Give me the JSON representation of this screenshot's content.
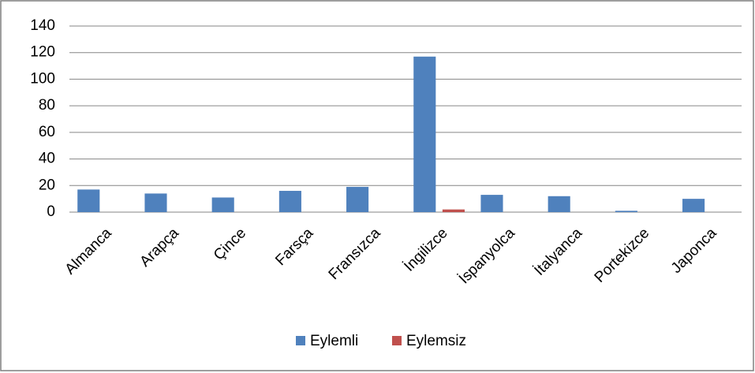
{
  "chart_data": {
    "type": "bar",
    "categories": [
      "Almanca",
      "Arapça",
      "Çince",
      "Farsça",
      "Fransızca",
      "İngilizce",
      "İspanyolca",
      "İtalyanca",
      "Portekizce",
      "Japonca"
    ],
    "series": [
      {
        "name": "Eylemli",
        "color": "#4f81bd",
        "values": [
          17,
          14,
          11,
          16,
          19,
          117,
          13,
          12,
          1,
          10
        ]
      },
      {
        "name": "Eylemsiz",
        "color": "#c0504d",
        "values": [
          0,
          0,
          0,
          0,
          0,
          2,
          0,
          0,
          0,
          0
        ]
      }
    ],
    "ylim": [
      0,
      140
    ],
    "yticks": [
      0,
      20,
      40,
      60,
      80,
      100,
      120,
      140
    ],
    "grid": true,
    "legend": "bottom"
  }
}
